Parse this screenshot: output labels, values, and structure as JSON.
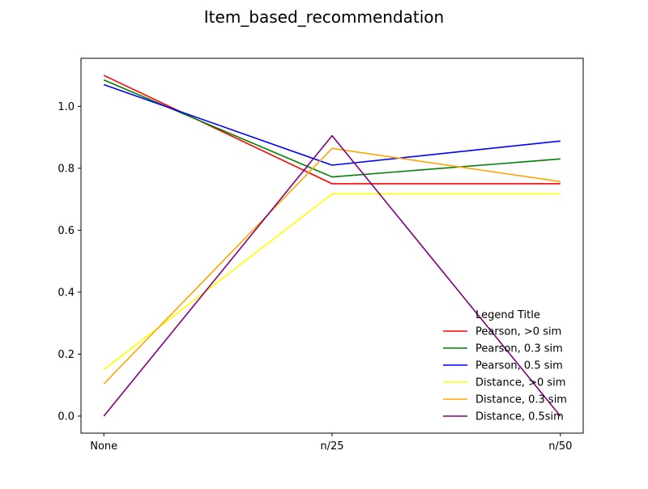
{
  "chart_data": {
    "type": "line",
    "title": "Item_based_recommendation",
    "xlabel": "",
    "ylabel": "",
    "categories": [
      "None",
      "n/25",
      "n/50"
    ],
    "ylim": [
      -0.055,
      1.155
    ],
    "yticks": [
      0.0,
      0.2,
      0.4,
      0.6,
      0.8,
      1.0
    ],
    "ytick_labels": [
      "0.0",
      "0.2",
      "0.4",
      "0.6",
      "0.8",
      "1.0"
    ],
    "grid": false,
    "legend": {
      "title": "Legend Title",
      "placement": "lower-right"
    },
    "series": [
      {
        "name": "Pearson, >0 sim",
        "color": "#ff0000",
        "values": [
          1.1,
          0.75,
          0.75
        ]
      },
      {
        "name": "Pearson, 0.3 sim",
        "color": "#008000",
        "values": [
          1.085,
          0.772,
          0.83
        ]
      },
      {
        "name": "Pearson, 0.5 sim",
        "color": "#0000ff",
        "values": [
          1.07,
          0.81,
          0.888
        ]
      },
      {
        "name": "Distance, >0 sim",
        "color": "#ffff00",
        "values": [
          0.15,
          0.717,
          0.717
        ]
      },
      {
        "name": "Distance, 0.3 sim",
        "color": "#ffa500",
        "values": [
          0.104,
          0.864,
          0.757
        ]
      },
      {
        "name": "Distance, 0.5sim",
        "color": "#800080",
        "values": [
          0.0,
          0.905,
          0.0
        ]
      }
    ]
  }
}
